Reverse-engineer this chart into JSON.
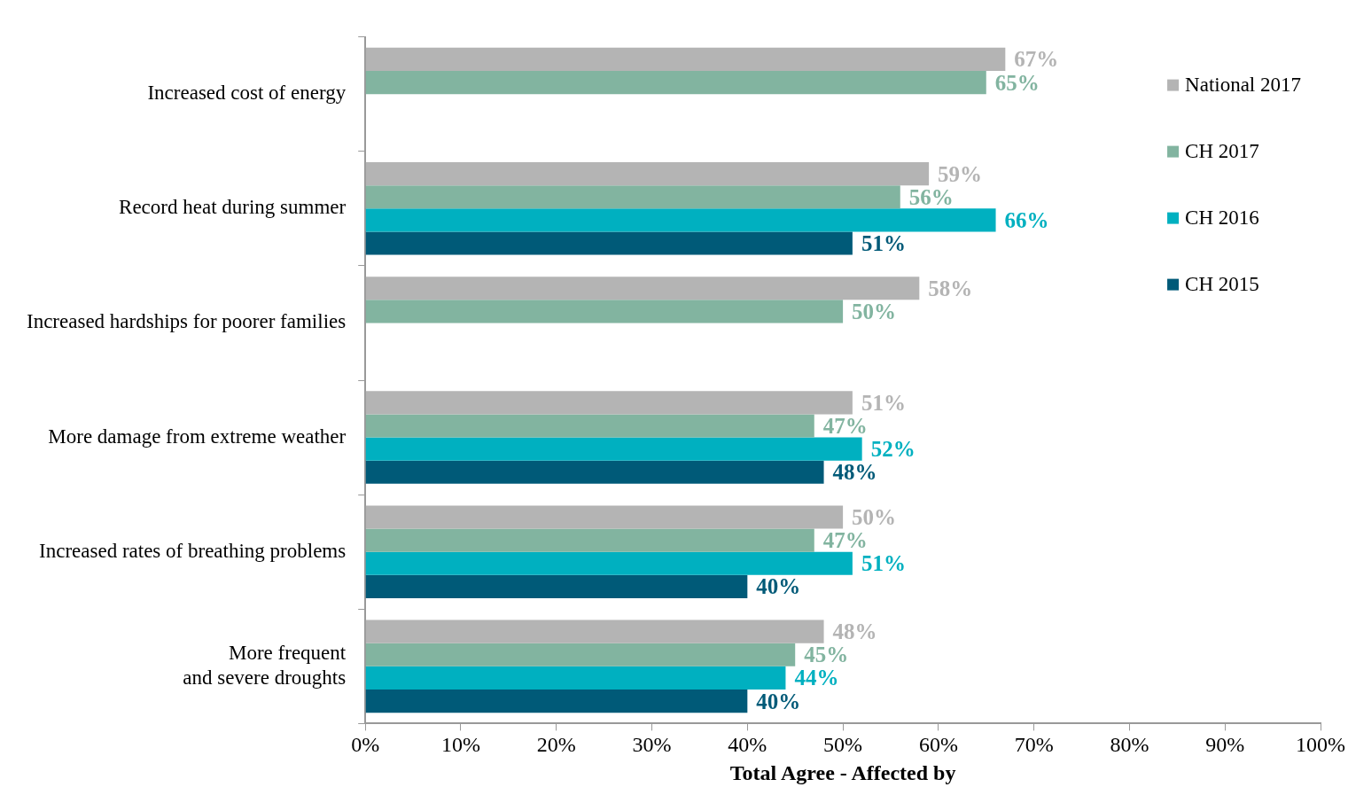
{
  "chart_data": {
    "type": "bar",
    "orientation": "horizontal",
    "xlabel": "Total Agree - Affected by",
    "categories": [
      "Increased cost of energy",
      "Record heat during summer",
      "Increased hardships for poorer families",
      "More damage from extreme weather",
      "Increased rates of breathing problems",
      "More frequent\nand severe droughts"
    ],
    "series": [
      {
        "name": "National 2017",
        "color": "#b4b4b4",
        "values": [
          67,
          59,
          58,
          51,
          50,
          48
        ],
        "value_labels": [
          "67%",
          "59%",
          "58%",
          "51%",
          "50%",
          "48%"
        ]
      },
      {
        "name": "CH 2017",
        "color": "#82b4a0",
        "values": [
          65,
          56,
          50,
          47,
          47,
          45
        ],
        "value_labels": [
          "65%",
          "56%",
          "50%",
          "47%",
          "47%",
          "45%"
        ]
      },
      {
        "name": "CH 2016",
        "color": "#00b0c0",
        "values": [
          null,
          66,
          null,
          52,
          51,
          44
        ],
        "value_labels": [
          null,
          "66%",
          null,
          "52%",
          "51%",
          "44%"
        ]
      },
      {
        "name": "CH 2015",
        "color": "#005a78",
        "values": [
          null,
          51,
          null,
          48,
          40,
          40
        ],
        "value_labels": [
          null,
          "51%",
          null,
          "48%",
          "40%",
          "40%"
        ]
      }
    ],
    "xlim": [
      0,
      100
    ],
    "xticks": [
      {
        "value": 0,
        "label": "0%"
      },
      {
        "value": 10,
        "label": "10%"
      },
      {
        "value": 20,
        "label": "20%"
      },
      {
        "value": 30,
        "label": "30%"
      },
      {
        "value": 40,
        "label": "40%"
      },
      {
        "value": 50,
        "label": "50%"
      },
      {
        "value": 60,
        "label": "60%"
      },
      {
        "value": 70,
        "label": "70%"
      },
      {
        "value": 80,
        "label": "80%"
      },
      {
        "value": 90,
        "label": "90%"
      },
      {
        "value": 100,
        "label": "100%"
      }
    ],
    "grid": false,
    "legend": "top right"
  }
}
